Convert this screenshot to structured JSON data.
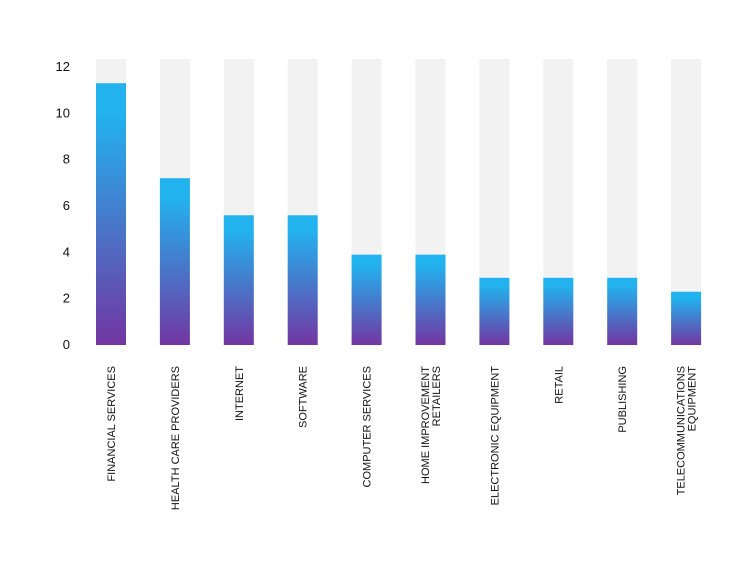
{
  "chart_data": {
    "type": "bar",
    "categories": [
      [
        "FINANCIAL SERVICES"
      ],
      [
        "HEALTH CARE PROVIDERS"
      ],
      [
        "INTERNET"
      ],
      [
        "SOFTWARE"
      ],
      [
        "COMPUTER SERVICES"
      ],
      [
        "HOME IMPROVEMENT",
        "RETAILERS"
      ],
      [
        "ELECTRONIC EQUIPMENT"
      ],
      [
        "RETAIL"
      ],
      [
        "PUBLISHING"
      ],
      [
        "TELECOMMUNICATIONS",
        "EQUIPMENT"
      ]
    ],
    "values": [
      11.3,
      7.2,
      5.6,
      5.6,
      3.9,
      3.9,
      2.9,
      2.9,
      2.9,
      2.3
    ],
    "ylim": [
      0,
      12
    ],
    "yticks": [
      0,
      2,
      4,
      6,
      8,
      10,
      12
    ],
    "background_bar_color": "#f2f2f2",
    "gradient_top_color": "#22b2ee",
    "gradient_bottom_color": "#7236a2",
    "grid": false,
    "legend": "none"
  }
}
